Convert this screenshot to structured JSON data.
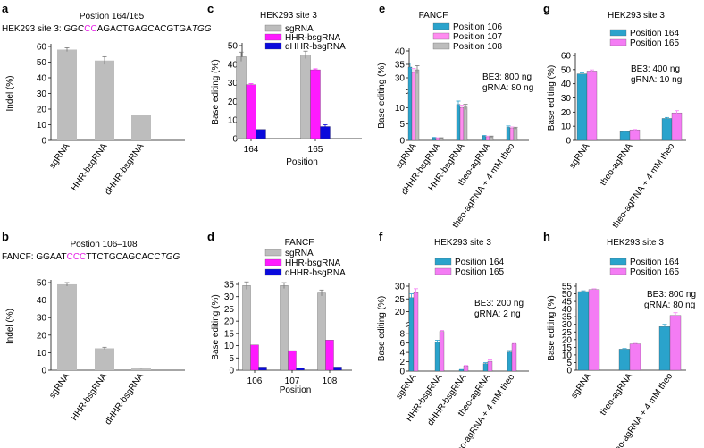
{
  "colors": {
    "sgRNA": "#bdbdbd",
    "HHR": "#ff1aff",
    "dHHR": "#0a0adc",
    "p164": "#2aa3cc",
    "p165": "#f47cf4",
    "p107": "#ff8cf0",
    "seqHighlight": "#e61ee6",
    "axis": "#111111"
  },
  "panels": {
    "a": {
      "title": "Postion 164/165",
      "seq_prefix": "HEK293 site 3: GGC",
      "seq_hl": "CC",
      "seq_mid": "AGACTGAGCACGTGA",
      "seq_pam": "TGG"
    },
    "b": {
      "title": "Postion 106–108",
      "seq_prefix": "FANCF: GGAAT",
      "seq_hl": "CCC",
      "seq_mid": "TTCTGCAGCACC",
      "seq_pam": "TGG"
    },
    "c": {
      "title": "HEK293 site 3"
    },
    "d": {
      "title": "FANCF"
    },
    "e": {
      "title": "FANCF",
      "note1": "BE3: 800 ng",
      "note2": "gRNA: 80 ng"
    },
    "f": {
      "title": "HEK293 site 3",
      "note1": "BE3: 200 ng",
      "note2": "gRNA: 2 ng"
    },
    "g": {
      "title": "HEK293 site 3",
      "note1": "BE3: 400 ng",
      "note2": "gRNA: 10 ng"
    },
    "h": {
      "title": "HEK293 site 3",
      "note1": "BE3: 800 ng",
      "note2": "gRNA: 80 ng"
    }
  },
  "chart_data": [
    {
      "id": "a",
      "type": "bar",
      "ylabel": "Indel (%)",
      "ylim": [
        0,
        60
      ],
      "yticks": [
        0,
        10,
        20,
        30,
        40,
        50,
        60
      ],
      "categories": [
        "sgRNA",
        "HHR-bsgRNA",
        "dHHR-bsgRNA"
      ],
      "series": [
        {
          "name": "Indel",
          "color": "sgRNA",
          "values": [
            58,
            51,
            16
          ],
          "errors": [
            1.2,
            2.5,
            0
          ]
        }
      ]
    },
    {
      "id": "b",
      "type": "bar",
      "ylabel": "Indel (%)",
      "ylim": [
        0,
        50
      ],
      "yticks": [
        0,
        10,
        20,
        30,
        40,
        50
      ],
      "categories": [
        "sgRNA",
        "HHR-bsgRNA",
        "dHHR-bsgRNA"
      ],
      "series": [
        {
          "name": "Indel",
          "color": "sgRNA",
          "values": [
            49,
            12.5,
            1
          ],
          "errors": [
            1,
            0.6,
            0.2
          ]
        }
      ]
    },
    {
      "id": "c",
      "type": "bar",
      "xlabel": "Position",
      "ylabel": "Base editing (%)",
      "ylim": [
        0,
        50
      ],
      "yticks": [
        0,
        10,
        20,
        30,
        40,
        50
      ],
      "categories": [
        "164",
        "165"
      ],
      "series": [
        {
          "name": "sgRNA",
          "color": "sgRNA",
          "values": [
            44,
            45
          ],
          "errors": [
            2.5,
            2
          ]
        },
        {
          "name": "HHR-bsgRNA",
          "color": "HHR",
          "values": [
            29,
            37
          ],
          "errors": [
            0.5,
            0.5
          ]
        },
        {
          "name": "dHHR-bsgRNA",
          "color": "dHHR",
          "values": [
            5,
            6.5
          ],
          "errors": [
            0,
            1
          ]
        }
      ]
    },
    {
      "id": "d",
      "type": "bar",
      "xlabel": "Position",
      "ylabel": "Base editing (%)",
      "ylim": [
        0,
        35
      ],
      "yticks": [
        0,
        5,
        10,
        15,
        20,
        25,
        30,
        35
      ],
      "categories": [
        "106",
        "107",
        "108"
      ],
      "series": [
        {
          "name": "sgRNA",
          "color": "sgRNA",
          "values": [
            34.5,
            34.5,
            31.5
          ],
          "errors": [
            1.5,
            1.2,
            1.2
          ]
        },
        {
          "name": "HHR-bsgRNA",
          "color": "HHR",
          "values": [
            10.3,
            8,
            12.3
          ],
          "errors": [
            0,
            0,
            0
          ]
        },
        {
          "name": "dHHR-bsgRNA",
          "color": "dHHR",
          "values": [
            1.3,
            1,
            1.3
          ],
          "errors": [
            0,
            0,
            0
          ]
        }
      ]
    },
    {
      "id": "e",
      "type": "bar",
      "ylabel": "Base editing (%)",
      "ylim": [
        0,
        40
      ],
      "axis_break": {
        "from": 15,
        "to": 25
      },
      "yticks": [
        0,
        5,
        10,
        15,
        30,
        35,
        40
      ],
      "ytick_labels": [
        "0",
        "5",
        "10",
        "",
        "30",
        "35",
        "40"
      ],
      "categories": [
        "sgRNA",
        "dHHR-bsgRNA",
        "HHR-bsgRNA",
        "theo-agRNA",
        "theo-agRNA + 4 mM theo"
      ],
      "series": [
        {
          "name": "Position 106",
          "color": "p164",
          "values": [
            34,
            0.8,
            11,
            1.3,
            4
          ],
          "errors": [
            1.5,
            0.1,
            1,
            0.2,
            0.4
          ]
        },
        {
          "name": "Position 107",
          "color": "p107",
          "values": [
            32,
            0.7,
            10,
            1.1,
            3.8
          ],
          "errors": [
            1.5,
            0.1,
            0.8,
            0.2,
            0.3
          ]
        },
        {
          "name": "Position 108",
          "color": "sgRNA",
          "values": [
            33,
            0.7,
            10.2,
            1.1,
            3.7
          ],
          "errors": [
            1.5,
            0.1,
            0.8,
            0.2,
            0.3
          ]
        }
      ]
    },
    {
      "id": "f",
      "type": "bar",
      "ylabel": "Base editing (%)",
      "ylim": [
        0,
        30
      ],
      "axis_break": {
        "from": 10,
        "to": 15
      },
      "yticks": [
        0,
        2,
        4,
        6,
        8,
        20,
        25,
        30
      ],
      "ytick_labels": [
        "0",
        "2",
        "4",
        "6",
        "8",
        "20",
        "25",
        "30"
      ],
      "categories": [
        "sgRNA",
        "HHR-bsgRNA",
        "dHHR-bsgRNA",
        "theo-agRNA",
        "theo-agRNA + 4 mM theo"
      ],
      "series": [
        {
          "name": "Position 164",
          "color": "p164",
          "values": [
            25.5,
            6.2,
            0.3,
            1.6,
            4.1
          ],
          "errors": [
            1.5,
            0.4,
            0.05,
            0.2,
            0.3
          ]
        },
        {
          "name": "Position 165",
          "color": "p165",
          "values": [
            27.5,
            8.5,
            1.1,
            2.1,
            5.8
          ],
          "errors": [
            1.5,
            0.2,
            0.1,
            0.3,
            0.1
          ]
        }
      ]
    },
    {
      "id": "g",
      "type": "bar",
      "ylabel": "Base editing (%)",
      "ylim": [
        0,
        60
      ],
      "yticks": [
        0,
        10,
        20,
        30,
        40,
        50,
        60
      ],
      "categories": [
        "sgRNA",
        "theo-agRNA",
        "theo-agRNA + 4 mM theo"
      ],
      "series": [
        {
          "name": "Position 164",
          "color": "p164",
          "values": [
            47,
            6.2,
            15.5
          ],
          "errors": [
            0.7,
            0.2,
            0.7
          ]
        },
        {
          "name": "Position 165",
          "color": "p165",
          "values": [
            49,
            7.5,
            19.5
          ],
          "errors": [
            0.8,
            0.2,
            1.5
          ]
        }
      ]
    },
    {
      "id": "h",
      "type": "bar",
      "ylabel": "Base editing (%)",
      "ylim": [
        0,
        55
      ],
      "yticks": [
        0,
        5,
        10,
        15,
        20,
        25,
        30,
        35,
        40,
        45,
        50,
        55
      ],
      "categories": [
        "sgRNA",
        "theo-agRNA",
        "theo-agRNA + 4 mM theo"
      ],
      "series": [
        {
          "name": "Position 164",
          "color": "p164",
          "values": [
            51.5,
            13.8,
            28.5
          ],
          "errors": [
            0.5,
            0.4,
            1.5
          ]
        },
        {
          "name": "Position 165",
          "color": "p165",
          "values": [
            52.8,
            17.2,
            35.8
          ],
          "errors": [
            0.5,
            0.3,
            1.8
          ]
        }
      ]
    }
  ]
}
